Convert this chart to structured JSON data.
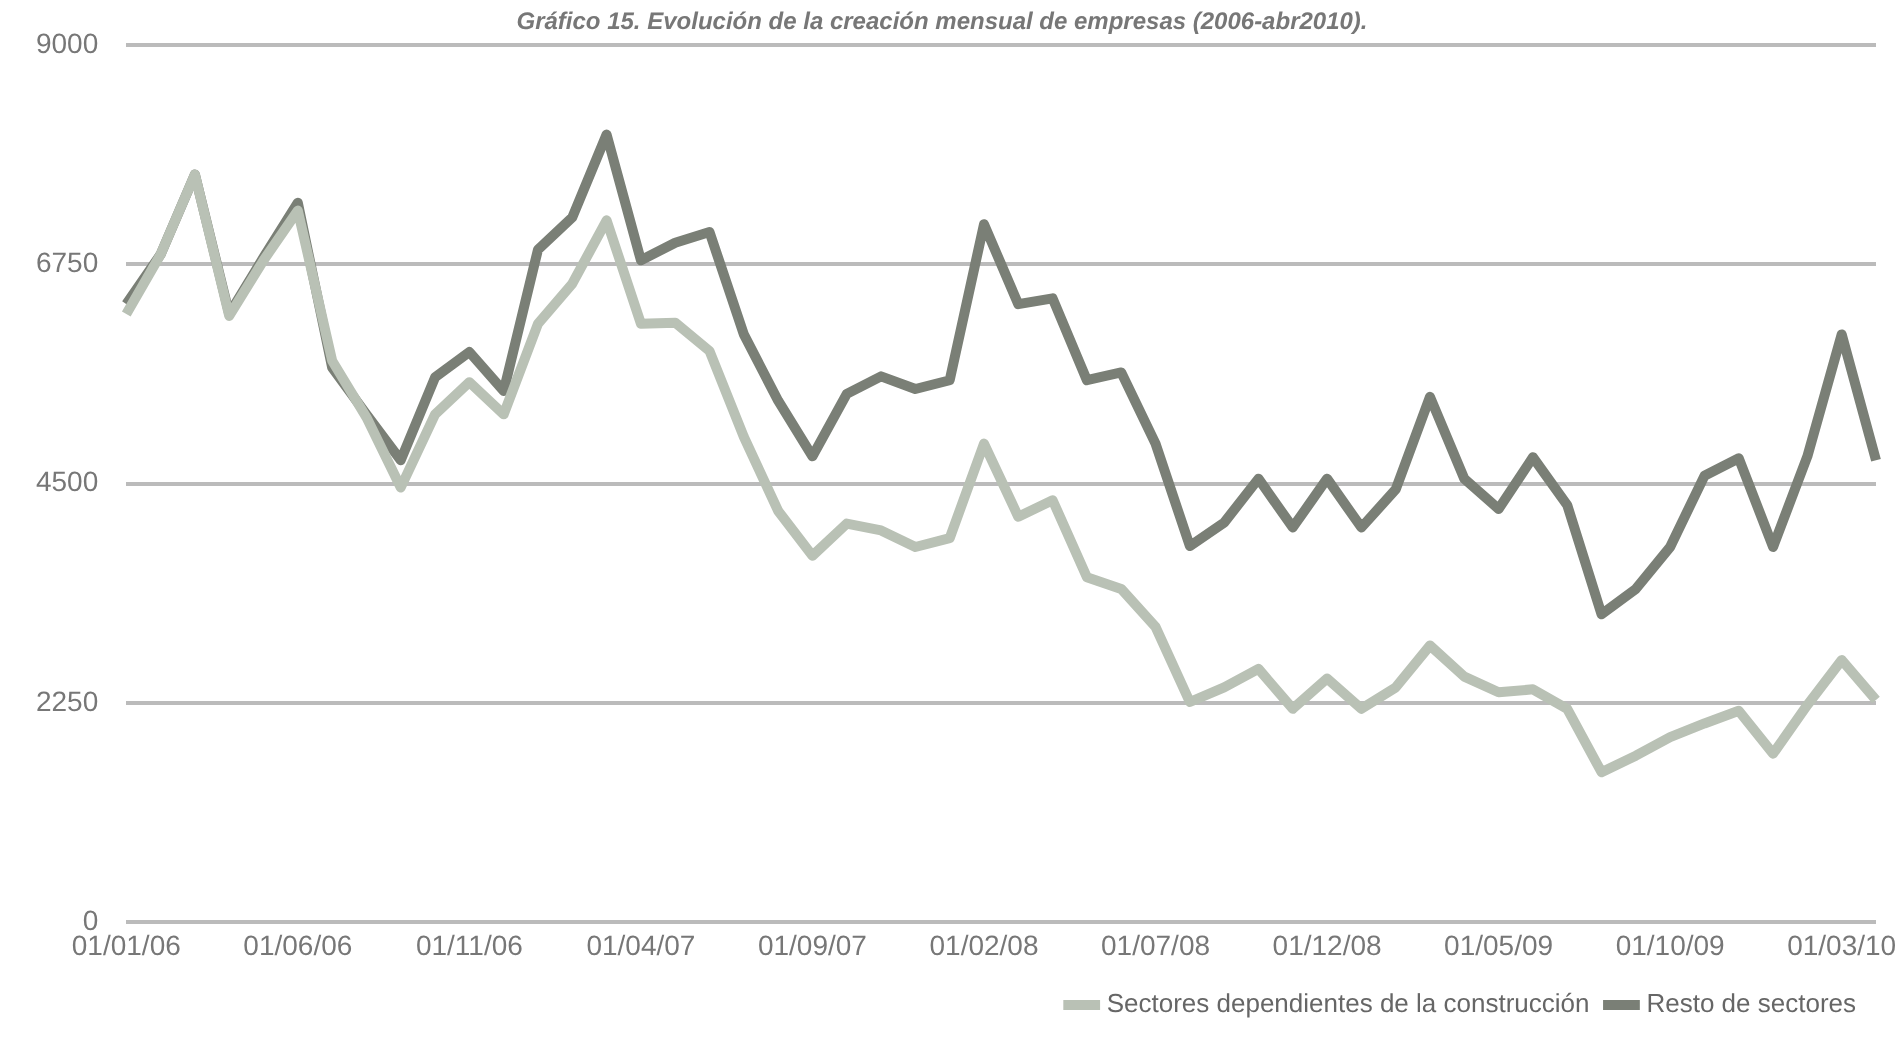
{
  "chart_data": {
    "type": "line",
    "title": "Gráfico 15. Evolución de la creación mensual de empresas (2006-abr2010).",
    "categories": [
      "01/01/06",
      null,
      null,
      null,
      null,
      "01/06/06",
      null,
      null,
      null,
      null,
      "01/11/06",
      null,
      null,
      null,
      null,
      "01/04/07",
      null,
      null,
      null,
      null,
      "01/09/07",
      null,
      null,
      null,
      null,
      "01/02/08",
      null,
      null,
      null,
      null,
      "01/07/08",
      null,
      null,
      null,
      null,
      "01/12/08",
      null,
      null,
      null,
      null,
      "01/05/09",
      null,
      null,
      null,
      null,
      "01/10/09",
      null,
      null,
      null,
      null,
      "01/03/10",
      null
    ],
    "series": [
      {
        "name": "Sectores dependientes de la construcción",
        "color": "#b9c1b5",
        "values": [
          6240,
          6850,
          7670,
          6220,
          6790,
          7300,
          5760,
          5180,
          4460,
          5210,
          5540,
          5210,
          6140,
          6550,
          7200,
          6140,
          6150,
          5860,
          4980,
          4220,
          3760,
          4090,
          4020,
          3850,
          3940,
          4910,
          4160,
          4330,
          3540,
          3420,
          3030,
          2260,
          2410,
          2600,
          2190,
          2500,
          2190,
          2410,
          2840,
          2520,
          2360,
          2390,
          2190,
          1540,
          1710,
          1900,
          2040,
          2170,
          1730,
          2230,
          2690,
          2280
        ]
      },
      {
        "name": "Resto de sectores",
        "color": "#7a7f76",
        "values": [
          6340,
          6850,
          7670,
          6240,
          6820,
          7380,
          5690,
          5210,
          4740,
          5590,
          5850,
          5450,
          6900,
          7230,
          8080,
          6790,
          6970,
          7080,
          6030,
          5350,
          4780,
          5420,
          5600,
          5470,
          5560,
          7160,
          6340,
          6400,
          5560,
          5640,
          4910,
          3860,
          4100,
          4550,
          4050,
          4550,
          4050,
          4440,
          5390,
          4550,
          4240,
          4770,
          4280,
          3160,
          3420,
          3850,
          4580,
          4760,
          3850,
          4780,
          6030,
          4740
        ]
      }
    ],
    "ylim": [
      0,
      9000
    ],
    "yticks": [
      0,
      2250,
      4500,
      6750,
      9000
    ],
    "grid": "y",
    "legend": "bottom right",
    "marker": "none",
    "line_style": "solid"
  }
}
